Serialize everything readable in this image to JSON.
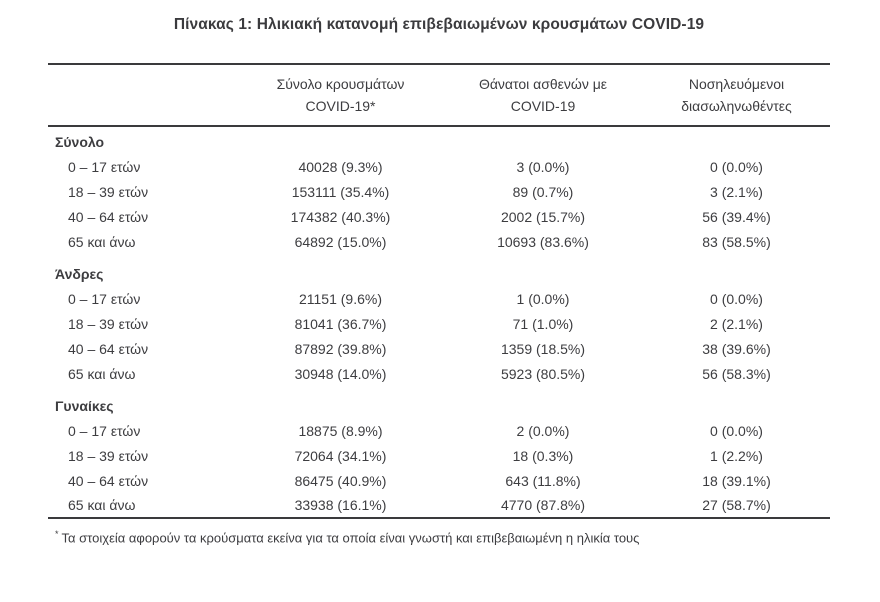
{
  "title": "Πίνακας 1: Ηλικιακή κατανομή επιβεβαιωμένων κρουσμάτων COVID-19",
  "columns": {
    "cases": {
      "line1": "Σύνολο κρουσμάτων",
      "line2": "COVID-19*"
    },
    "deaths": {
      "line1": "Θάνατοι ασθενών με",
      "line2": "COVID-19"
    },
    "intubated": {
      "line1": "Νοσηλευόμενοι",
      "line2": "διασωληνωθέντες"
    }
  },
  "sections": [
    {
      "label": "Σύνολο",
      "rows": [
        {
          "age": "0 – 17 ετών",
          "cases": "40028 (9.3%)",
          "deaths": "3 (0.0%)",
          "intubated": "0 (0.0%)"
        },
        {
          "age": "18 – 39 ετών",
          "cases": "153111 (35.4%)",
          "deaths": "89 (0.7%)",
          "intubated": "3 (2.1%)"
        },
        {
          "age": "40 – 64 ετών",
          "cases": "174382 (40.3%)",
          "deaths": "2002 (15.7%)",
          "intubated": "56 (39.4%)"
        },
        {
          "age": "65 και άνω",
          "cases": "64892 (15.0%)",
          "deaths": "10693 (83.6%)",
          "intubated": "83 (58.5%)"
        }
      ]
    },
    {
      "label": "Άνδρες",
      "rows": [
        {
          "age": "0 – 17 ετών",
          "cases": "21151 (9.6%)",
          "deaths": "1 (0.0%)",
          "intubated": "0 (0.0%)"
        },
        {
          "age": "18 – 39 ετών",
          "cases": "81041 (36.7%)",
          "deaths": "71 (1.0%)",
          "intubated": "2 (2.1%)"
        },
        {
          "age": "40 – 64 ετών",
          "cases": "87892 (39.8%)",
          "deaths": "1359 (18.5%)",
          "intubated": "38 (39.6%)"
        },
        {
          "age": "65 και άνω",
          "cases": "30948 (14.0%)",
          "deaths": "5923 (80.5%)",
          "intubated": "56 (58.3%)"
        }
      ]
    },
    {
      "label": "Γυναίκες",
      "rows": [
        {
          "age": "0 – 17 ετών",
          "cases": "18875 (8.9%)",
          "deaths": "2 (0.0%)",
          "intubated": "0 (0.0%)"
        },
        {
          "age": "18 – 39 ετών",
          "cases": "72064 (34.1%)",
          "deaths": "18 (0.3%)",
          "intubated": "1 (2.2%)"
        },
        {
          "age": "40 – 64 ετών",
          "cases": "86475 (40.9%)",
          "deaths": "643 (11.8%)",
          "intubated": "18 (39.1%)"
        },
        {
          "age": "65 και άνω",
          "cases": "33938 (16.1%)",
          "deaths": "4770 (87.8%)",
          "intubated": "27 (58.7%)"
        }
      ]
    }
  ],
  "footnote": {
    "marker": "*",
    "text": "Τα στοιχεία αφορούν τα κρούσματα εκείνα για τα οποία είναι γνωστή και επιβεβαιωμένη η ηλικία τους"
  }
}
